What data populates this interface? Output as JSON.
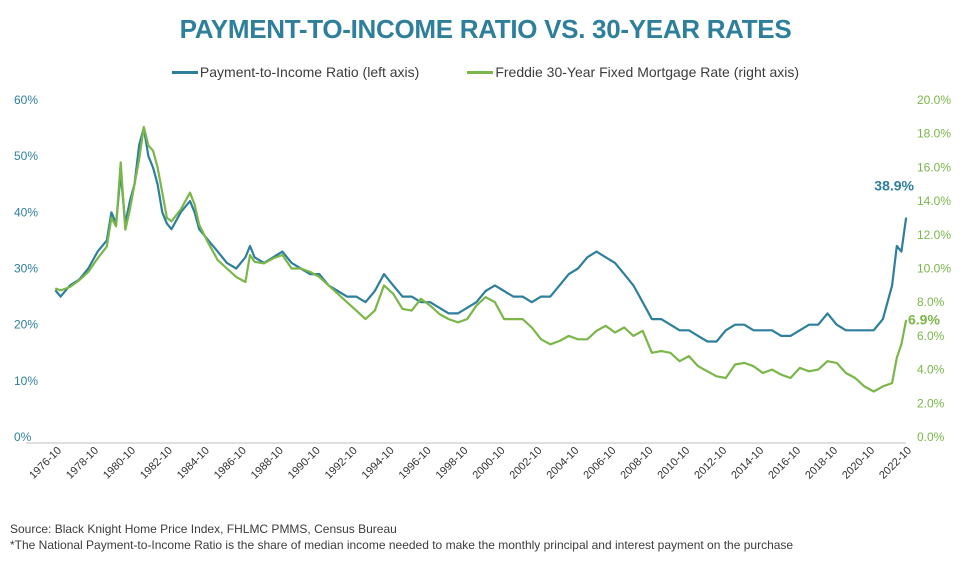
{
  "chart_data": {
    "type": "line",
    "title": "PAYMENT-TO-INCOME RATIO VS. 30-YEAR RATES",
    "left_axis": {
      "range": [
        0,
        60
      ],
      "ticks": [
        0,
        10,
        20,
        30,
        40,
        50,
        60
      ],
      "tick_labels": [
        "0%",
        "10%",
        "20%",
        "30%",
        "40%",
        "50%",
        "60%"
      ],
      "color": "#2e7f9b"
    },
    "right_axis": {
      "range": [
        0,
        20
      ],
      "ticks": [
        0,
        2,
        4,
        6,
        8,
        10,
        12,
        14,
        16,
        18,
        20
      ],
      "tick_labels": [
        "0.0%",
        "2.0%",
        "4.0%",
        "6.0%",
        "8.0%",
        "10.0%",
        "12.0%",
        "14.0%",
        "16.0%",
        "18.0%",
        "20.0%"
      ],
      "color": "#7ab648"
    },
    "x_axis": {
      "range": [
        1976.75,
        2022.75
      ],
      "ticks": [
        1976.75,
        1978.75,
        1980.75,
        1982.75,
        1984.75,
        1986.75,
        1988.75,
        1990.75,
        1992.75,
        1994.75,
        1996.75,
        1998.75,
        2000.75,
        2002.75,
        2004.75,
        2006.75,
        2008.75,
        2010.75,
        2012.75,
        2014.75,
        2016.75,
        2018.75,
        2020.75,
        2022.75
      ],
      "tick_labels": [
        "1976-10",
        "1978-10",
        "1980-10",
        "1982-10",
        "1984-10",
        "1986-10",
        "1988-10",
        "1990-10",
        "1992-10",
        "1994-10",
        "1996-10",
        "1998-10",
        "2000-10",
        "2002-10",
        "2004-10",
        "2006-10",
        "2008-10",
        "2010-10",
        "2012-10",
        "2014-10",
        "2016-10",
        "2018-10",
        "2020-10",
        "2022-10"
      ]
    },
    "grid": false,
    "legend_position": "top-center",
    "series": [
      {
        "name": "Payment-to-Income Ratio (left axis)",
        "axis": "left",
        "color": "#2e7f9b",
        "x": [
          1976.75,
          1977.0,
          1977.5,
          1978.0,
          1978.5,
          1979.0,
          1979.5,
          1979.75,
          1980.0,
          1980.25,
          1980.5,
          1980.75,
          1981.0,
          1981.25,
          1981.5,
          1981.75,
          1982.0,
          1982.25,
          1982.5,
          1982.75,
          1983.0,
          1983.5,
          1984.0,
          1984.25,
          1984.5,
          1985.0,
          1985.5,
          1986.0,
          1986.5,
          1987.0,
          1987.25,
          1987.5,
          1988.0,
          1988.5,
          1989.0,
          1989.5,
          1990.0,
          1990.5,
          1991.0,
          1991.5,
          1992.0,
          1992.5,
          1993.0,
          1993.5,
          1994.0,
          1994.5,
          1995.0,
          1995.5,
          1996.0,
          1996.5,
          1997.0,
          1997.5,
          1998.0,
          1998.5,
          1999.0,
          1999.5,
          2000.0,
          2000.5,
          2001.0,
          2001.5,
          2002.0,
          2002.5,
          2003.0,
          2003.5,
          2004.0,
          2004.5,
          2005.0,
          2005.5,
          2006.0,
          2006.5,
          2007.0,
          2007.5,
          2008.0,
          2008.5,
          2009.0,
          2009.5,
          2010.0,
          2010.5,
          2011.0,
          2011.5,
          2012.0,
          2012.5,
          2013.0,
          2013.5,
          2014.0,
          2014.5,
          2015.0,
          2015.5,
          2016.0,
          2016.5,
          2017.0,
          2017.5,
          2018.0,
          2018.5,
          2019.0,
          2019.5,
          2020.0,
          2020.5,
          2021.0,
          2021.5,
          2022.0,
          2022.25,
          2022.5,
          2022.75
        ],
        "values": [
          26,
          25,
          27,
          28,
          30,
          33,
          35,
          40,
          38,
          47,
          38,
          42,
          45,
          52,
          55,
          50,
          48,
          45,
          40,
          38,
          37,
          40,
          42,
          40,
          37,
          35,
          33,
          31,
          30,
          32,
          34,
          32,
          31,
          32,
          33,
          31,
          30,
          29,
          29,
          27,
          26,
          25,
          25,
          24,
          26,
          29,
          27,
          25,
          25,
          24,
          24,
          23,
          22,
          22,
          23,
          24,
          26,
          27,
          26,
          25,
          25,
          24,
          25,
          25,
          27,
          29,
          30,
          32,
          33,
          32,
          31,
          29,
          27,
          24,
          21,
          21,
          20,
          19,
          19,
          18,
          17,
          17,
          19,
          20,
          20,
          19,
          19,
          19,
          18,
          18,
          19,
          20,
          20,
          22,
          20,
          19,
          19,
          19,
          19,
          21,
          27,
          34,
          33,
          38.9
        ]
      },
      {
        "name": "Freddie 30-Year Fixed Mortgage Rate (right axis)",
        "axis": "right",
        "color": "#7ab648",
        "x": [
          1976.75,
          1977.0,
          1977.5,
          1978.0,
          1978.5,
          1979.0,
          1979.5,
          1979.75,
          1980.0,
          1980.25,
          1980.5,
          1980.75,
          1981.0,
          1981.25,
          1981.5,
          1981.75,
          1982.0,
          1982.25,
          1982.5,
          1982.75,
          1983.0,
          1983.5,
          1984.0,
          1984.25,
          1984.5,
          1985.0,
          1985.5,
          1986.0,
          1986.5,
          1987.0,
          1987.25,
          1987.5,
          1988.0,
          1988.5,
          1989.0,
          1989.5,
          1990.0,
          1990.5,
          1991.0,
          1991.5,
          1992.0,
          1992.5,
          1993.0,
          1993.5,
          1994.0,
          1994.5,
          1995.0,
          1995.5,
          1996.0,
          1996.5,
          1997.0,
          1997.5,
          1998.0,
          1998.5,
          1999.0,
          1999.5,
          2000.0,
          2000.5,
          2001.0,
          2001.5,
          2002.0,
          2002.5,
          2003.0,
          2003.5,
          2004.0,
          2004.5,
          2005.0,
          2005.5,
          2006.0,
          2006.5,
          2007.0,
          2007.5,
          2008.0,
          2008.5,
          2009.0,
          2009.5,
          2010.0,
          2010.5,
          2011.0,
          2011.5,
          2012.0,
          2012.5,
          2013.0,
          2013.5,
          2014.0,
          2014.5,
          2015.0,
          2015.5,
          2016.0,
          2016.5,
          2017.0,
          2017.5,
          2018.0,
          2018.5,
          2019.0,
          2019.5,
          2020.0,
          2020.5,
          2021.0,
          2021.5,
          2022.0,
          2022.25,
          2022.5,
          2022.75
        ],
        "values": [
          8.8,
          8.7,
          8.9,
          9.3,
          9.8,
          10.6,
          11.3,
          13.0,
          12.5,
          16.3,
          12.3,
          13.5,
          15.0,
          16.5,
          18.4,
          17.3,
          17.0,
          16.0,
          14.5,
          13.0,
          12.8,
          13.5,
          14.5,
          13.8,
          12.6,
          11.5,
          10.5,
          10.0,
          9.5,
          9.2,
          10.8,
          10.4,
          10.3,
          10.6,
          10.8,
          10.0,
          10.0,
          9.8,
          9.5,
          9.0,
          8.5,
          8.0,
          7.5,
          7.0,
          7.5,
          9.0,
          8.5,
          7.6,
          7.5,
          8.2,
          7.8,
          7.3,
          7.0,
          6.8,
          7.0,
          7.8,
          8.3,
          8.0,
          7.0,
          7.0,
          7.0,
          6.5,
          5.8,
          5.5,
          5.7,
          6.0,
          5.8,
          5.8,
          6.3,
          6.6,
          6.2,
          6.5,
          6.0,
          6.3,
          5.0,
          5.1,
          5.0,
          4.5,
          4.8,
          4.2,
          3.9,
          3.6,
          3.5,
          4.3,
          4.4,
          4.2,
          3.8,
          4.0,
          3.7,
          3.5,
          4.1,
          3.9,
          4.0,
          4.5,
          4.4,
          3.8,
          3.5,
          3.0,
          2.7,
          3.0,
          3.2,
          4.7,
          5.5,
          6.9
        ]
      }
    ],
    "annotations": [
      {
        "label": "38.9%",
        "series": 0,
        "color": "#2e7f9b"
      },
      {
        "label": "6.9%",
        "series": 1,
        "color": "#7ab648"
      }
    ]
  },
  "footnotes": {
    "source": "Source: Black Knight Home Price Index, FHLMC PMMS, Census Bureau",
    "note": "*The National Payment-to-Income Ratio is the share of median income needed to make the monthly principal and interest payment on the purchase"
  }
}
